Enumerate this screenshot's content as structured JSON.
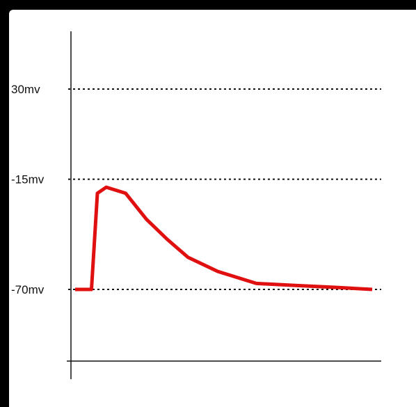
{
  "colors": {
    "background": "#000000",
    "panel": "#ffffff",
    "axis": "#111111",
    "reference_line": "#111111",
    "series": "#e01010"
  },
  "chart_data": {
    "type": "line",
    "title": "",
    "xlabel": "",
    "ylabel": "",
    "grid": false,
    "legend": "none",
    "ylim": [
      -115,
      56
    ],
    "xlim": [
      0,
      100
    ],
    "reference_lines": [
      {
        "y": 30,
        "label": "30mv",
        "style": "dotted"
      },
      {
        "y": -15,
        "label": "-15mv",
        "style": "dotted"
      },
      {
        "y": -70,
        "label": "-70mv",
        "style": "dotted"
      }
    ],
    "series": [
      {
        "x": [
          0,
          5.5,
          7.5,
          10.5,
          17,
          24,
          31,
          38,
          48,
          61,
          74,
          88,
          100
        ],
        "y": [
          -70,
          -70,
          -22,
          -19,
          -22,
          -35,
          -45,
          -54,
          -61,
          -67,
          -68,
          -69,
          -70
        ]
      }
    ]
  }
}
